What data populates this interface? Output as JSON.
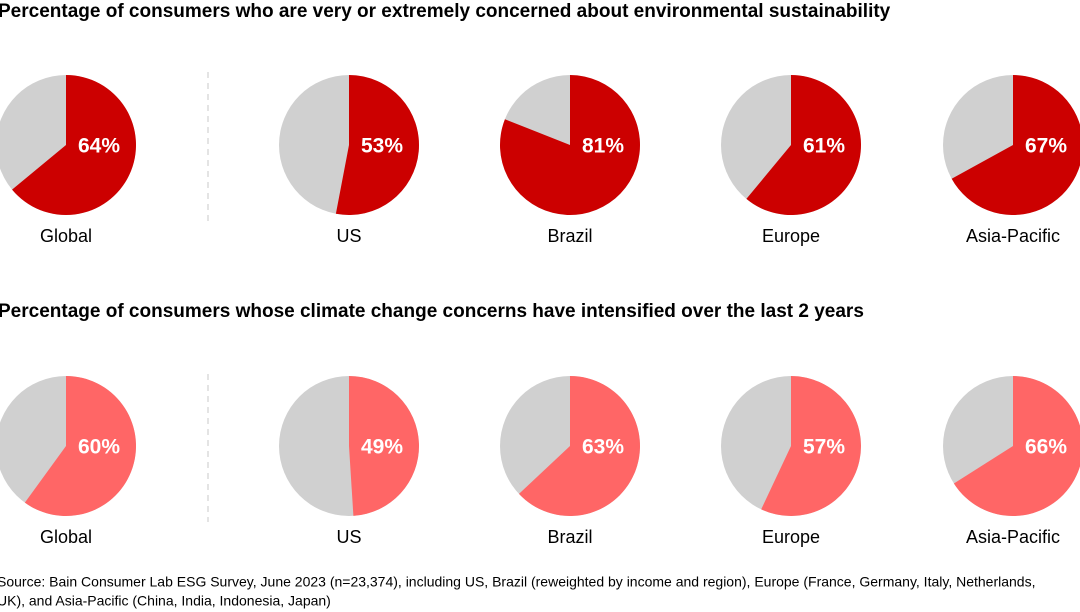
{
  "chart_data": [
    {
      "type": "pie",
      "title": "Percentage of consumers who are very or extremely concerned about environmental sustainability",
      "categories": [
        "Global",
        "US",
        "Brazil",
        "Europe",
        "Asia-Pacific"
      ],
      "values": [
        64,
        53,
        81,
        61,
        67
      ],
      "value_labels": [
        "64%",
        "53%",
        "81%",
        "61%",
        "67%"
      ],
      "color": "#cc0000"
    },
    {
      "type": "pie",
      "title": "Percentage of consumers whose climate change concerns have intensified over the last 2 years",
      "categories": [
        "Global",
        "US",
        "Brazil",
        "Europe",
        "Asia-Pacific"
      ],
      "values": [
        60,
        49,
        63,
        57,
        66
      ],
      "value_labels": [
        "60%",
        "49%",
        "63%",
        "57%",
        "66%"
      ],
      "color": "#ff6666"
    }
  ],
  "source": [
    "Source: Bain Consumer Lab ESG Survey, June 2023 (n=23,374), including US, Brazil (reweighted by income and region), Europe (France, Germany, Italy, Netherlands,",
    "UK), and Asia-Pacific (China, India, Indonesia, Japan)"
  ]
}
